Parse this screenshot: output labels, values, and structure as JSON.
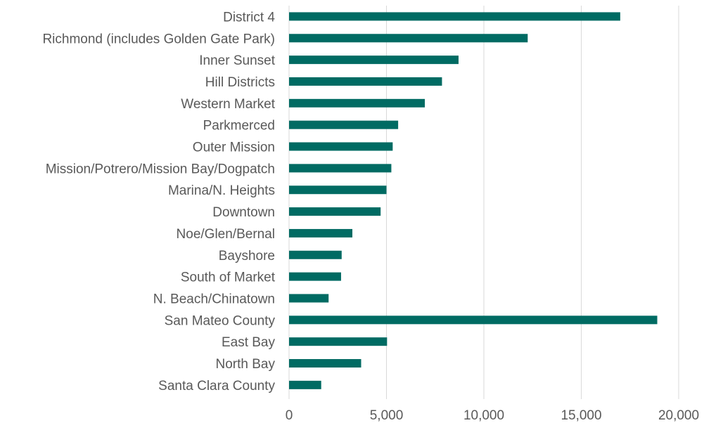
{
  "chart_data": {
    "type": "bar",
    "orientation": "horizontal",
    "title": "",
    "xlabel": "",
    "ylabel": "",
    "categories": [
      "District 4",
      "Richmond (includes Golden Gate Park)",
      "Inner Sunset",
      "Hill Districts",
      "Western Market",
      "Parkmerced",
      "Outer Mission",
      "Mission/Potrero/Mission Bay/Dogpatch",
      "Marina/N. Heights",
      "Downtown",
      "Noe/Glen/Bernal",
      "Bayshore",
      "South of Market",
      "N. Beach/Chinatown",
      "San Mateo County",
      "East Bay",
      "North Bay",
      "Santa Clara County"
    ],
    "values": [
      17000,
      12250,
      8700,
      7850,
      6970,
      5600,
      5320,
      5250,
      5000,
      4700,
      3250,
      2700,
      2670,
      2030,
      18900,
      5030,
      3700,
      1650
    ],
    "xlim": [
      0,
      20000
    ],
    "xticks": [
      0,
      5000,
      10000,
      15000,
      20000
    ],
    "xtick_labels": [
      "0",
      "5,000",
      "10,000",
      "15,000",
      "20,000"
    ],
    "grid": true,
    "legend": "none",
    "bar_color": "#006b63",
    "grid_color": "#d9d9d9",
    "text_color": "#595959"
  }
}
